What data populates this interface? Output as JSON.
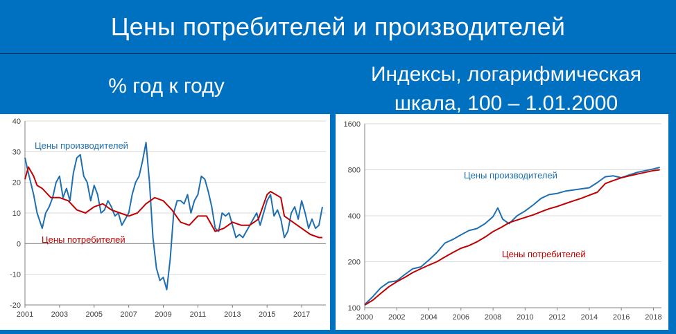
{
  "header": {
    "title": "Цены потребителей и производителей"
  },
  "subtitles": {
    "left": "% год к году",
    "right_line1": "Индексы, логарифмическая",
    "right_line2": "шкала, 100 – 1.01.2000"
  },
  "colors": {
    "background": "#0070c0",
    "ppi": "#1f6fb0",
    "cpi": "#c00000"
  },
  "chart_data": [
    {
      "type": "line",
      "xlabel": "",
      "ylabel": "",
      "xlim": [
        2001,
        2018.4
      ],
      "ylim": [
        -20,
        40
      ],
      "x_ticks": [
        "2001",
        "2003",
        "2005",
        "2007",
        "2009",
        "2011",
        "2013",
        "2015",
        "2017"
      ],
      "y_ticks": [
        "40",
        "30",
        "20",
        "10",
        "0",
        "-10",
        "-20"
      ],
      "grid": "horizontal",
      "series": [
        {
          "name": "Цены производителей",
          "label_text": "Цены производителей",
          "x": [
            2001.0,
            2001.2,
            2001.5,
            2001.7,
            2002.0,
            2002.2,
            2002.4,
            2002.6,
            2002.8,
            2003.0,
            2003.2,
            2003.4,
            2003.6,
            2003.8,
            2004.0,
            2004.2,
            2004.4,
            2004.6,
            2004.8,
            2005.0,
            2005.2,
            2005.4,
            2005.6,
            2005.8,
            2006.0,
            2006.2,
            2006.4,
            2006.6,
            2006.8,
            2007.0,
            2007.2,
            2007.4,
            2007.6,
            2007.8,
            2008.0,
            2008.2,
            2008.4,
            2008.6,
            2008.8,
            2009.0,
            2009.2,
            2009.4,
            2009.6,
            2009.8,
            2010.0,
            2010.2,
            2010.4,
            2010.6,
            2010.8,
            2011.0,
            2011.2,
            2011.4,
            2011.6,
            2011.8,
            2012.0,
            2012.2,
            2012.4,
            2012.6,
            2012.8,
            2013.0,
            2013.2,
            2013.4,
            2013.6,
            2013.8,
            2014.0,
            2014.2,
            2014.4,
            2014.6,
            2014.8,
            2015.0,
            2015.2,
            2015.4,
            2015.6,
            2015.8,
            2016.0,
            2016.2,
            2016.4,
            2016.6,
            2016.8,
            2017.0,
            2017.2,
            2017.4,
            2017.6,
            2017.8,
            2018.0,
            2018.2
          ],
          "values": [
            28,
            23,
            16,
            10,
            5,
            10,
            12,
            15,
            20,
            22,
            15,
            18,
            14,
            23,
            28,
            29,
            22,
            20,
            14,
            19,
            16,
            10,
            11,
            14,
            12,
            9,
            10,
            6,
            8,
            10,
            16,
            20,
            22,
            27,
            33,
            20,
            2,
            -8,
            -12,
            -11,
            -15,
            -5,
            10,
            14,
            14,
            13,
            16,
            10,
            14,
            16,
            22,
            21,
            17,
            12,
            5,
            4,
            10,
            9,
            10,
            6,
            2,
            3,
            2,
            4,
            6,
            8,
            10,
            6,
            10,
            14,
            16,
            9,
            11,
            8,
            2,
            4,
            10,
            12,
            8,
            14,
            10,
            5,
            8,
            5,
            6,
            12
          ]
        },
        {
          "name": "Цены потребителей",
          "label_text": "Цены потребителей",
          "x": [
            2001.0,
            2001.2,
            2001.5,
            2001.7,
            2002.0,
            2002.5,
            2003.0,
            2003.5,
            2004.0,
            2004.5,
            2005.0,
            2005.5,
            2006.0,
            2006.5,
            2007.0,
            2007.5,
            2008.0,
            2008.5,
            2009.0,
            2009.5,
            2010.0,
            2010.5,
            2011.0,
            2011.5,
            2012.0,
            2012.5,
            2013.0,
            2013.5,
            2014.0,
            2014.5,
            2015.0,
            2015.2,
            2015.5,
            2015.8,
            2016.0,
            2016.5,
            2017.0,
            2017.5,
            2018.0,
            2018.2
          ],
          "values": [
            21,
            25,
            22,
            19,
            18,
            15,
            15,
            14,
            11,
            10,
            12,
            13,
            11,
            10,
            9,
            10,
            13,
            15,
            14,
            11,
            7,
            6,
            9,
            9,
            4,
            5,
            7,
            6,
            6,
            8,
            16,
            17,
            16,
            15,
            9,
            7,
            5,
            3,
            2,
            2
          ]
        }
      ]
    },
    {
      "type": "line",
      "xlabel": "",
      "ylabel": "",
      "xlim": [
        2000,
        2018.5
      ],
      "ylim": [
        100,
        1600
      ],
      "y_scale": "log",
      "x_ticks": [
        "2000",
        "2002",
        "2004",
        "2006",
        "2008",
        "2010",
        "2012",
        "2014",
        "2016",
        "2018"
      ],
      "y_ticks": [
        "1600",
        "800",
        "400",
        "200",
        "100"
      ],
      "grid": "horizontal",
      "series": [
        {
          "name": "Цены производителей",
          "label_text": "Цены производителей",
          "x": [
            2000,
            2000.5,
            2001,
            2001.5,
            2002,
            2002.5,
            2003,
            2003.5,
            2004,
            2004.5,
            2005,
            2005.5,
            2006,
            2006.5,
            2007,
            2007.5,
            2008,
            2008.3,
            2008.6,
            2009,
            2009.5,
            2010,
            2010.5,
            2011,
            2011.5,
            2012,
            2012.5,
            2013,
            2013.5,
            2014,
            2014.5,
            2015,
            2015.5,
            2016,
            2016.5,
            2017,
            2017.5,
            2018,
            2018.4
          ],
          "values": [
            105,
            118,
            135,
            147,
            150,
            165,
            180,
            185,
            205,
            230,
            265,
            280,
            300,
            320,
            330,
            355,
            395,
            450,
            380,
            355,
            400,
            430,
            470,
            520,
            550,
            560,
            580,
            590,
            600,
            610,
            660,
            720,
            730,
            710,
            740,
            770,
            790,
            810,
            830
          ]
        },
        {
          "name": "Цены потребителей",
          "label_text": "Цены потребителей",
          "x": [
            2000,
            2000.5,
            2001,
            2001.5,
            2002,
            2002.5,
            2003,
            2003.5,
            2004,
            2004.5,
            2005,
            2005.5,
            2006,
            2006.5,
            2007,
            2007.5,
            2008,
            2008.5,
            2009,
            2009.5,
            2010,
            2010.5,
            2011,
            2011.5,
            2012,
            2012.5,
            2013,
            2013.5,
            2014,
            2014.5,
            2015,
            2015.5,
            2016,
            2016.5,
            2017,
            2017.5,
            2018,
            2018.4
          ],
          "values": [
            104,
            112,
            124,
            137,
            148,
            158,
            170,
            180,
            190,
            200,
            215,
            230,
            245,
            255,
            270,
            290,
            315,
            335,
            360,
            375,
            390,
            405,
            425,
            445,
            460,
            480,
            500,
            520,
            545,
            570,
            650,
            680,
            710,
            730,
            750,
            770,
            790,
            800
          ]
        }
      ]
    }
  ]
}
